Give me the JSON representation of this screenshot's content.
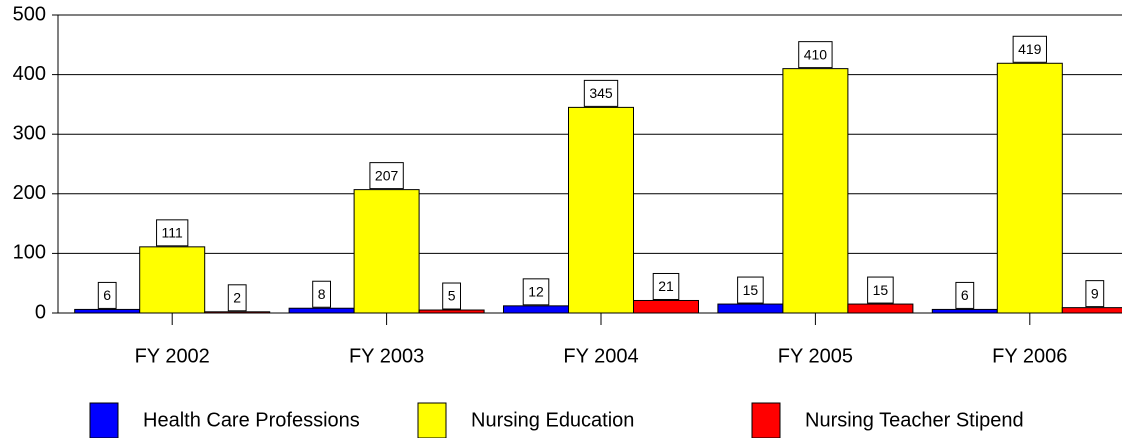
{
  "chart_data": {
    "type": "bar",
    "categories": [
      "FY 2002",
      "FY 2003",
      "FY 2004",
      "FY 2005",
      "FY 2006"
    ],
    "series": [
      {
        "name": "Health Care Professions",
        "color": "#0000ff",
        "values": [
          6,
          8,
          12,
          15,
          6
        ]
      },
      {
        "name": "Nursing Education",
        "color": "#ffff00",
        "values": [
          111,
          207,
          345,
          410,
          419
        ]
      },
      {
        "name": "Nursing Teacher Stipend",
        "color": "#ff0000",
        "values": [
          2,
          5,
          21,
          15,
          9
        ]
      }
    ],
    "ylim": [
      0,
      500
    ],
    "yticks": [
      0,
      100,
      200,
      300,
      400,
      500
    ],
    "grid": true,
    "legend": "bottom"
  }
}
